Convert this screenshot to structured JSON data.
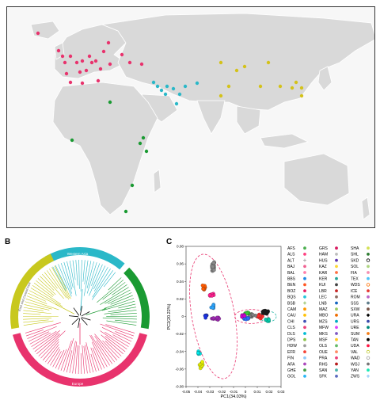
{
  "figure": {
    "panel_a": "A",
    "panel_b": "B",
    "panel_c": "C"
  },
  "map": {
    "groups": [
      {
        "name": "europe",
        "color": "#e8336d"
      },
      {
        "name": "western-asia",
        "color": "#2ab8c8"
      },
      {
        "name": "east-asia",
        "color": "#d4c21a"
      },
      {
        "name": "africa",
        "color": "#1a9a32"
      }
    ]
  },
  "tree": {
    "clades": [
      {
        "label": "Western Asia",
        "color": "#2ab8c8"
      },
      {
        "label": "Africa",
        "color": "#1a9a32"
      },
      {
        "label": "Europe",
        "color": "#e8336d"
      },
      {
        "label": "East and Central Asia",
        "color": "#c8c81e"
      }
    ]
  },
  "chart_data": {
    "type": "scatter",
    "xlabel": "PC1(34.03%)",
    "ylabel": "PC2(20.22%)",
    "xlim": [
      -0.05,
      0.03
    ],
    "ylim": [
      -0.08,
      0.08
    ],
    "x_ticks": [
      "-0.05",
      "-0.04",
      "-0.03",
      "-0.02",
      "-0.01",
      "0",
      "0.01",
      "0.02",
      "0.03"
    ],
    "y_ticks": [
      "0.08",
      "0.06",
      "0.04",
      "0.02",
      "0",
      "-0.02",
      "-0.04",
      "-0.06",
      "-0.08"
    ],
    "clusters": [
      {
        "color": "#888888",
        "x": -0.027,
        "y": 0.057,
        "n": 22,
        "sx": 0.002,
        "sy": 0.008
      },
      {
        "color": "#ff5a00",
        "x": -0.035,
        "y": 0.033,
        "n": 10,
        "sx": 0.002,
        "sy": 0.004
      },
      {
        "color": "#ff1f8f",
        "x": -0.028,
        "y": 0.025,
        "n": 8,
        "sx": 0.003,
        "sy": 0.004
      },
      {
        "color": "#2aa4ff",
        "x": -0.027,
        "y": 0.012,
        "n": 8,
        "sx": 0.003,
        "sy": 0.004
      },
      {
        "color": "#1a32e6",
        "x": -0.033,
        "y": 0.0,
        "n": 8,
        "sx": 0.002,
        "sy": 0.004
      },
      {
        "color": "#9c27b0",
        "x": -0.025,
        "y": -0.002,
        "n": 10,
        "sx": 0.004,
        "sy": 0.003
      },
      {
        "color": "#e6f000",
        "x": -0.037,
        "y": -0.055,
        "n": 10,
        "sx": 0.002,
        "sy": 0.006
      },
      {
        "color": "#00e6e6",
        "x": -0.039,
        "y": -0.042,
        "n": 6,
        "sx": 0.002,
        "sy": 0.003
      },
      {
        "color": "#1a1a1a",
        "x": 0.017,
        "y": 0.005,
        "n": 14,
        "sx": 0.004,
        "sy": 0.004
      },
      {
        "color": "#ff2a2a",
        "x": 0.012,
        "y": 0.0,
        "n": 12,
        "sx": 0.004,
        "sy": 0.003
      },
      {
        "color": "#7f7f7f",
        "x": 0.005,
        "y": 0.001,
        "n": 14,
        "sx": 0.005,
        "sy": 0.003
      },
      {
        "color": "#2a6aff",
        "x": 0.0,
        "y": -0.002,
        "n": 8,
        "sx": 0.004,
        "sy": 0.002
      },
      {
        "color": "#33cc33",
        "x": 0.001,
        "y": 0.004,
        "n": 10,
        "sx": 0.003,
        "sy": 0.002
      },
      {
        "color": "#00ccaa",
        "x": 0.019,
        "y": -0.004,
        "n": 6,
        "sx": 0.003,
        "sy": 0.002
      },
      {
        "color": "#cc00cc",
        "x": -0.002,
        "y": 0.001,
        "n": 6,
        "sx": 0.003,
        "sy": 0.002
      }
    ],
    "ellipses": [
      {
        "cx": -0.027,
        "cy": 0.0,
        "rx": 0.018,
        "ry": 0.072,
        "rotate": -10
      },
      {
        "cx": 0.005,
        "cy": 0.0,
        "rx": 0.014,
        "ry": 0.008,
        "rotate": 0
      },
      {
        "cx": 0.019,
        "cy": 0.0,
        "rx": 0.007,
        "ry": 0.006,
        "rotate": 0
      }
    ],
    "legend": [
      {
        "label": "AFS",
        "color": "#4caf50",
        "shape": "dot"
      },
      {
        "label": "ALS",
        "color": "#ff4081",
        "shape": "dot"
      },
      {
        "label": "ALT",
        "color": "#9e9e9e",
        "shape": "plus"
      },
      {
        "label": "BAJ",
        "color": "#f06292",
        "shape": "dot"
      },
      {
        "label": "BAL",
        "color": "#ff80ab",
        "shape": "dot"
      },
      {
        "label": "BBS",
        "color": "#1e88e5",
        "shape": "dot"
      },
      {
        "label": "BEN",
        "color": "#ff5722",
        "shape": "dot"
      },
      {
        "label": "BOZ",
        "color": "#e91e63",
        "shape": "dot"
      },
      {
        "label": "BQS",
        "color": "#26c6da",
        "shape": "dot"
      },
      {
        "label": "BSB",
        "color": "#7cb342",
        "shape": "plus"
      },
      {
        "label": "CAM",
        "color": "#ff9800",
        "shape": "dot"
      },
      {
        "label": "CAU",
        "color": "#ffc107",
        "shape": "dot"
      },
      {
        "label": "CHI",
        "color": "#3f51b5",
        "shape": "dot"
      },
      {
        "label": "CLS",
        "color": "#ec407a",
        "shape": "dot"
      },
      {
        "label": "DLS",
        "color": "#00bcd4",
        "shape": "dot"
      },
      {
        "label": "DPS",
        "color": "#8bc34a",
        "shape": "dot"
      },
      {
        "label": "HDW",
        "color": "#9e9e9e",
        "shape": "dot"
      },
      {
        "label": "EFR",
        "color": "#f44336",
        "shape": "dot"
      },
      {
        "label": "FIN",
        "color": "#90caf9",
        "shape": "dot"
      },
      {
        "label": "AFA",
        "color": "#ab47bc",
        "shape": "dot"
      },
      {
        "label": "GHE",
        "color": "#43a047",
        "shape": "dot"
      },
      {
        "label": "GOL",
        "color": "#29b6f6",
        "shape": "dot"
      },
      {
        "label": "GRS",
        "color": "#d81b60",
        "shape": "dot"
      },
      {
        "label": "HAM",
        "color": "#bdbdbd",
        "shape": "dot"
      },
      {
        "label": "HUS",
        "color": "#5e35b1",
        "shape": "dot"
      },
      {
        "label": "KAZ",
        "color": "#fdd835",
        "shape": "dot"
      },
      {
        "label": "KAR",
        "color": "#ff7043",
        "shape": "dot"
      },
      {
        "label": "KER",
        "color": "#26a69a",
        "shape": "dot"
      },
      {
        "label": "KUI",
        "color": "#424242",
        "shape": "dot"
      },
      {
        "label": "LBR",
        "color": "#c62828",
        "shape": "dot"
      },
      {
        "label": "LEC",
        "color": "#8d6e63",
        "shape": "dot"
      },
      {
        "label": "LNB",
        "color": "#1565c0",
        "shape": "dot"
      },
      {
        "label": "MAZ",
        "color": "#9ccc65",
        "shape": "dot"
      },
      {
        "label": "MBO",
        "color": "#ef6c00",
        "shape": "dot"
      },
      {
        "label": "MZS",
        "color": "#00acc1",
        "shape": "dot"
      },
      {
        "label": "MFW",
        "color": "#e040fb",
        "shape": "dot"
      },
      {
        "label": "MKS",
        "color": "#7e57c2",
        "shape": "dot"
      },
      {
        "label": "MSF",
        "color": "#ffca28",
        "shape": "dot"
      },
      {
        "label": "OLS",
        "color": "#66bb6a",
        "shape": "dot"
      },
      {
        "label": "OUE",
        "color": "#ff8a65",
        "shape": "dot"
      },
      {
        "label": "PRA",
        "color": "#ec407a",
        "shape": "dot"
      },
      {
        "label": "RHS",
        "color": "#b71c1c",
        "shape": "dot"
      },
      {
        "label": "SAN",
        "color": "#4db6ac",
        "shape": "dot"
      },
      {
        "label": "SFK",
        "color": "#5c6bc0",
        "shape": "dot"
      },
      {
        "label": "SHA",
        "color": "#d4e157",
        "shape": "dot"
      },
      {
        "label": "SHL",
        "color": "#2e7d32",
        "shape": "dot"
      },
      {
        "label": "SKD",
        "color": "#000000",
        "shape": "ring"
      },
      {
        "label": "SOL",
        "color": "#aed581",
        "shape": "dot"
      },
      {
        "label": "FIA",
        "color": "#f48fb1",
        "shape": "dot"
      },
      {
        "label": "TEX",
        "color": "#4fc3f7",
        "shape": "dot"
      },
      {
        "label": "WDS",
        "color": "#ff6f00",
        "shape": "ring"
      },
      {
        "label": "ICE",
        "color": "#e53935",
        "shape": "dot"
      },
      {
        "label": "ROM",
        "color": "#ba68c8",
        "shape": "dot"
      },
      {
        "label": "SSS",
        "color": "#607d8b",
        "shape": "dot"
      },
      {
        "label": "SXW",
        "color": "#795548",
        "shape": "dot"
      },
      {
        "label": "URA",
        "color": "#000000",
        "shape": "diamond"
      },
      {
        "label": "URS",
        "color": "#3949ab",
        "shape": "dot"
      },
      {
        "label": "URE",
        "color": "#00897b",
        "shape": "dot"
      },
      {
        "label": "SUM",
        "color": "#f57f17",
        "shape": "dot"
      },
      {
        "label": "TAN",
        "color": "#000000",
        "shape": "dot"
      },
      {
        "label": "UDA",
        "color": "#ff1744",
        "shape": "dot"
      },
      {
        "label": "VAL",
        "color": "#c0ca33",
        "shape": "ring"
      },
      {
        "label": "WAD",
        "color": "#9e9e9e",
        "shape": "ring"
      },
      {
        "label": "WGJ",
        "color": "#757575",
        "shape": "dot"
      },
      {
        "label": "YAN",
        "color": "#1de9b6",
        "shape": "dot"
      },
      {
        "label": "ZWS",
        "color": "#64b5f6",
        "shape": "plus"
      }
    ]
  }
}
